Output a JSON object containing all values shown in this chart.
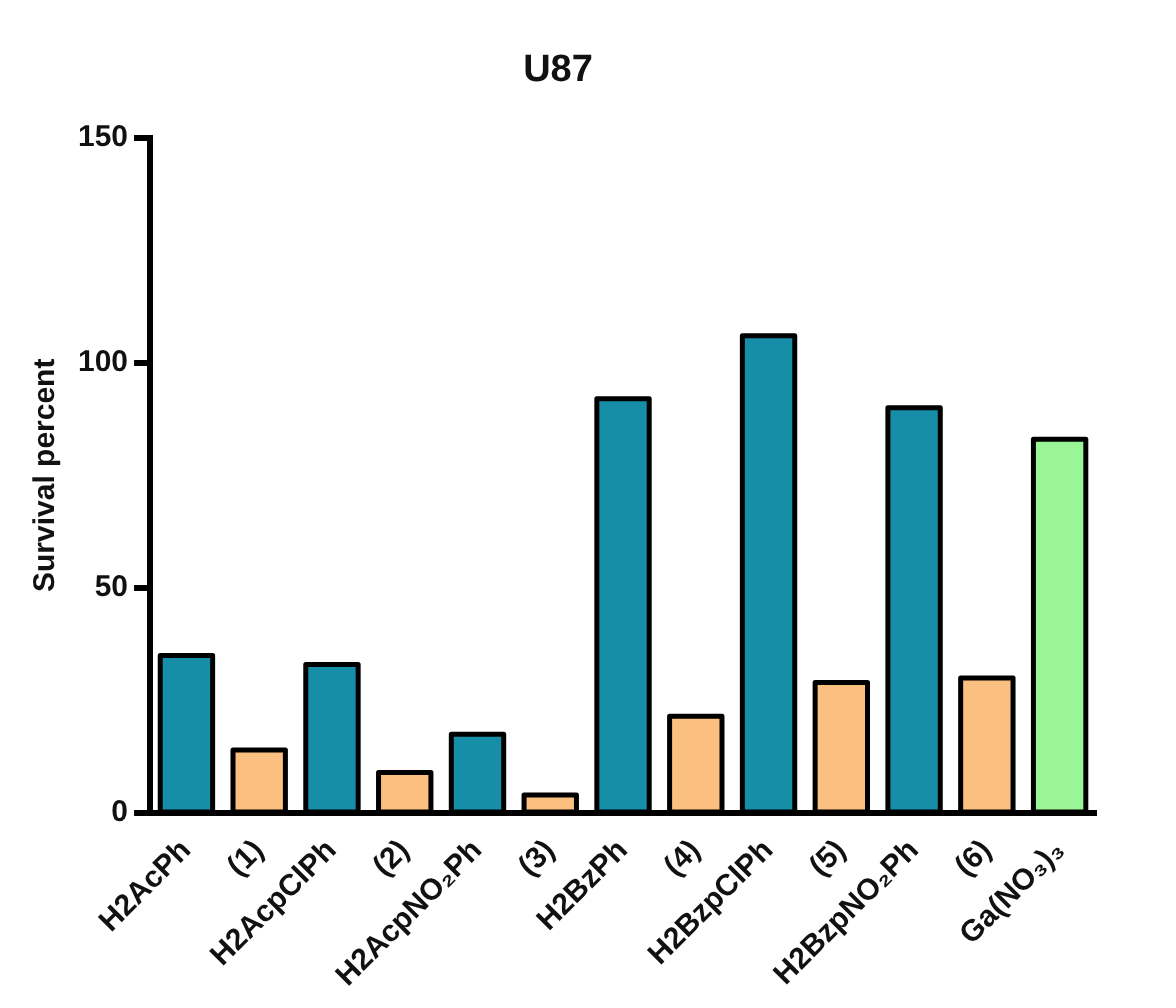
{
  "chart_data": {
    "type": "bar",
    "title": "U87",
    "ylabel": "Survival percent",
    "categories": [
      "H2AcPh",
      "(1)",
      "H2AcpClPh",
      "(2)",
      "H2AcpNO₂Ph",
      "(3)",
      "H2BzPh",
      "(4)",
      "H2BzpClPh",
      "(5)",
      "H2BzpNO₂Ph",
      "(6)",
      "Ga(NO₃)₃"
    ],
    "values": [
      35,
      14,
      33,
      9,
      17.5,
      4,
      92,
      21.5,
      106,
      29,
      90,
      30,
      83
    ],
    "colors": [
      "#168ea8",
      "#fbbf80",
      "#168ea8",
      "#fbbf80",
      "#168ea8",
      "#fbbf80",
      "#168ea8",
      "#fbbf80",
      "#168ea8",
      "#fbbf80",
      "#168ea8",
      "#fbbf80",
      "#99f596"
    ],
    "ylim": [
      0,
      150
    ],
    "yticks": [
      0,
      50,
      100,
      150
    ],
    "grid": false,
    "legend": false
  }
}
